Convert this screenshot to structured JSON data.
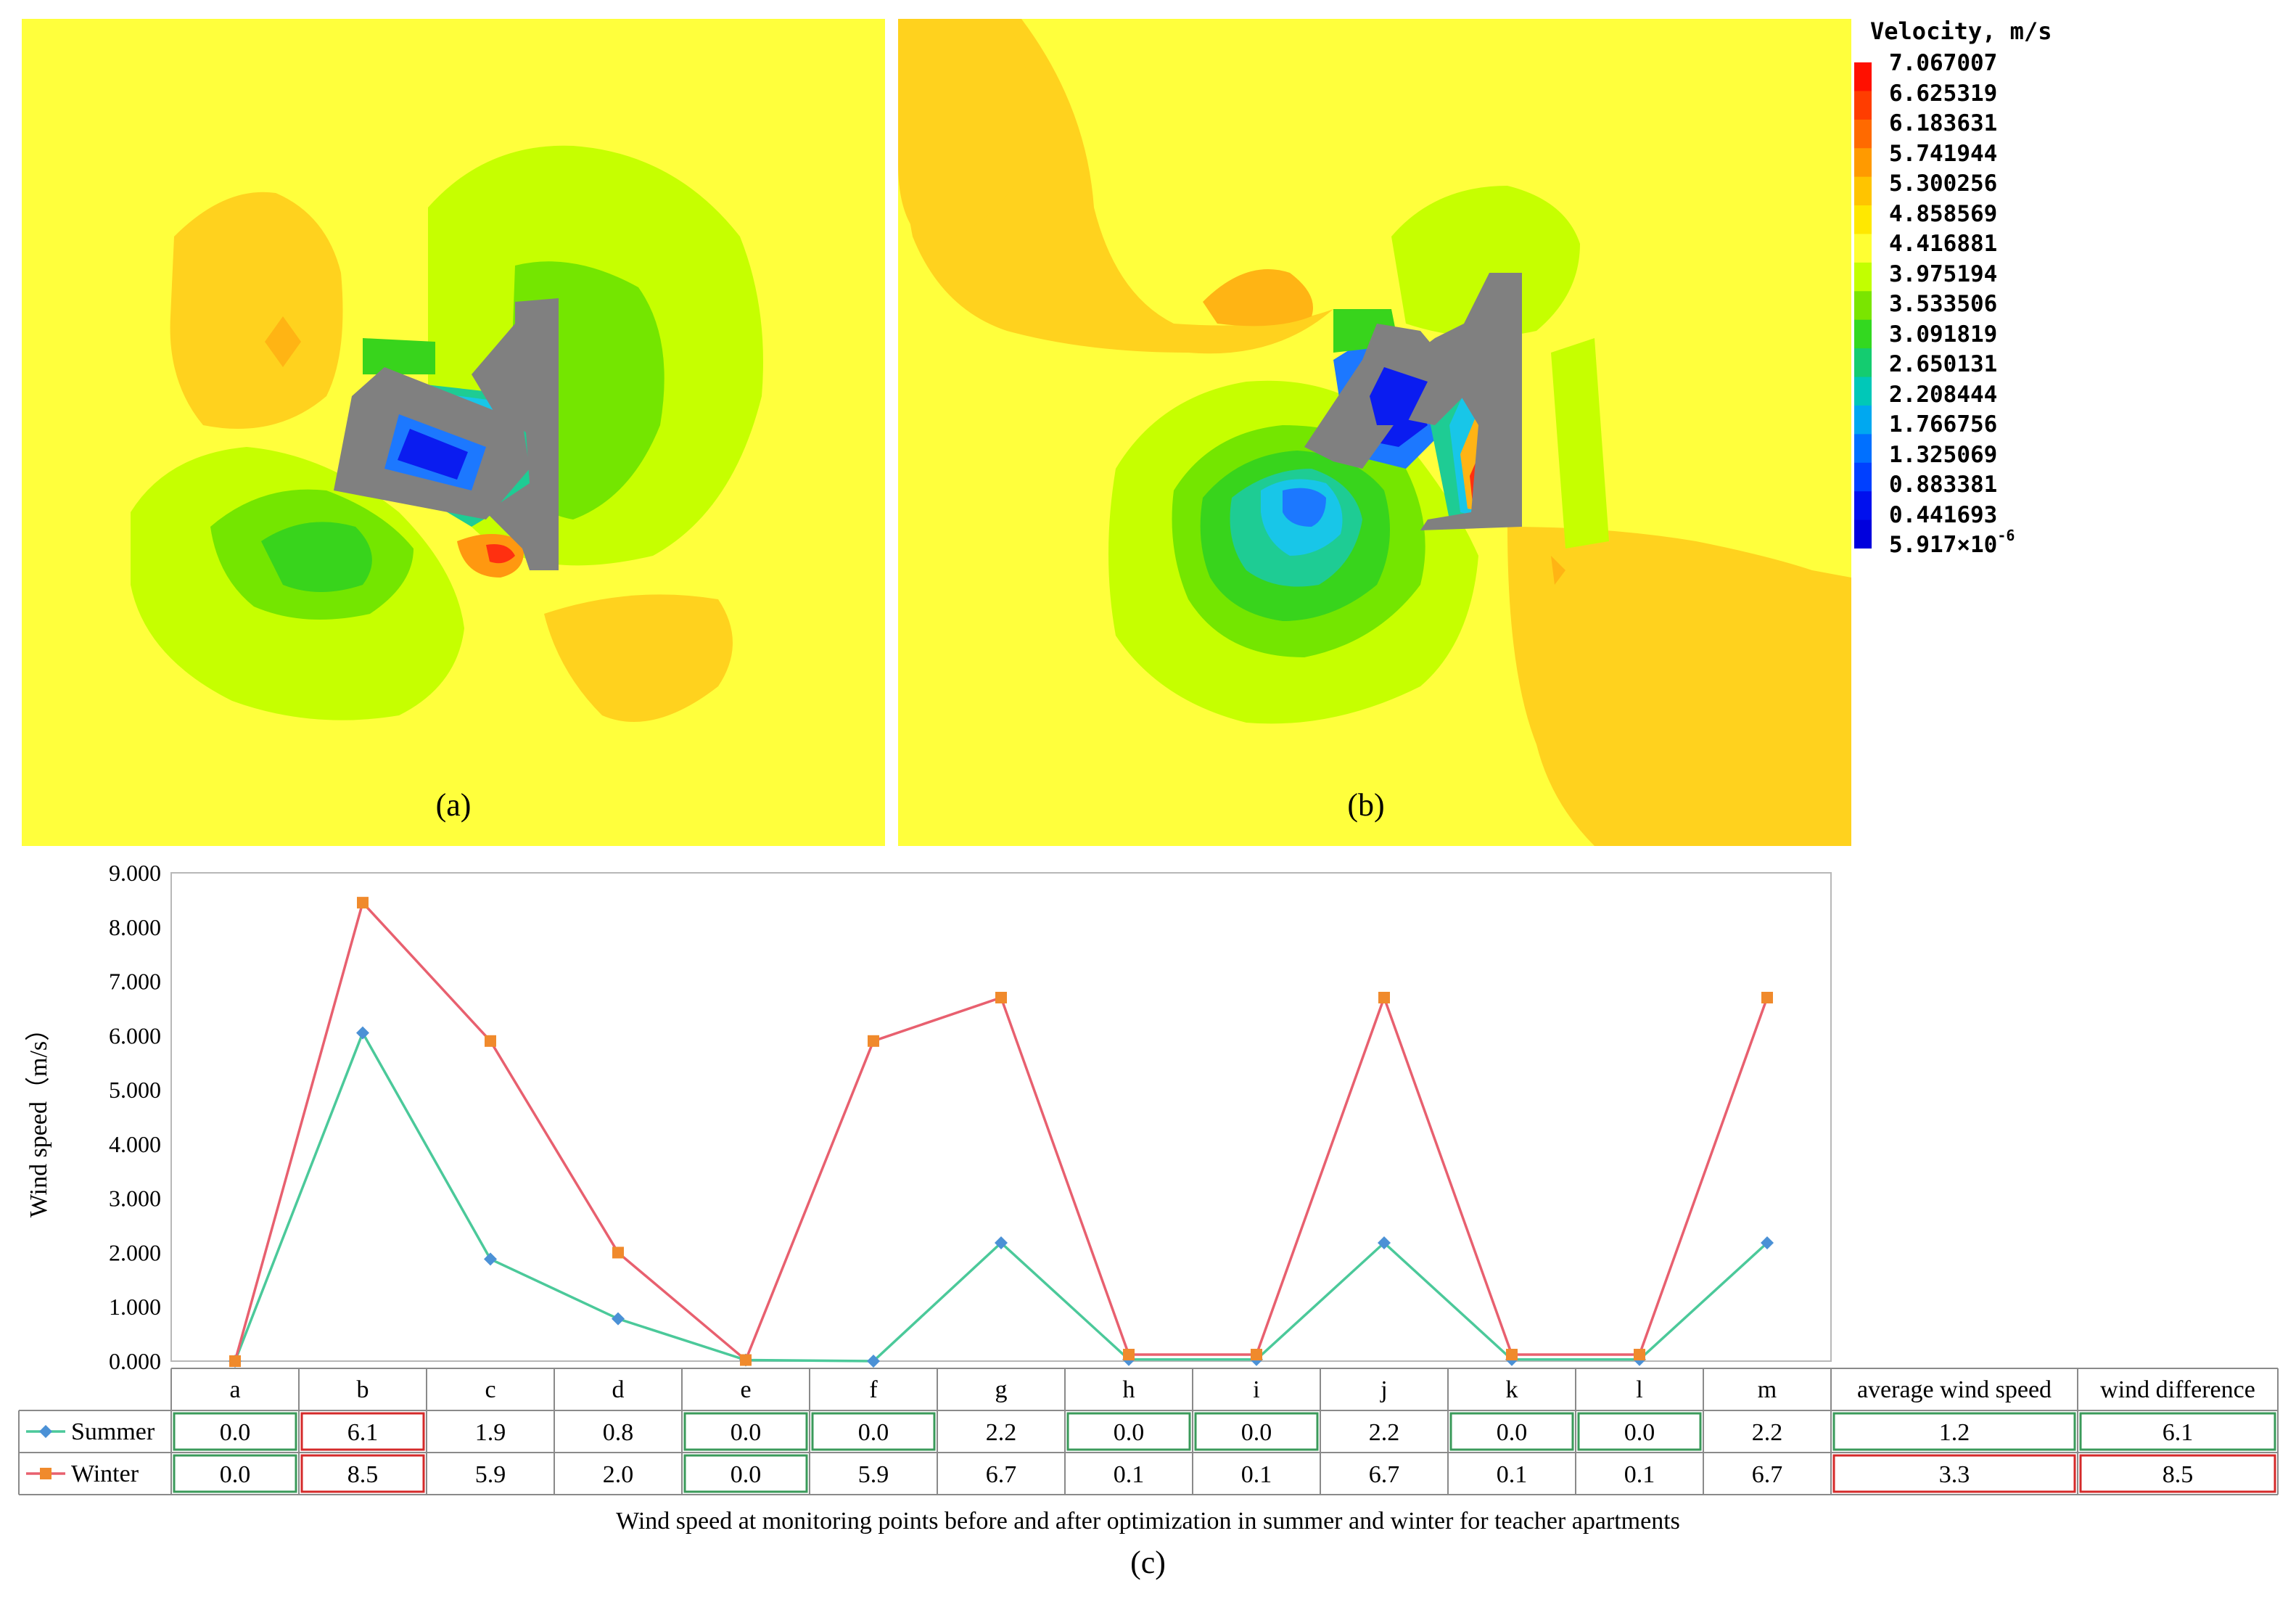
{
  "panels": {
    "a_label": "(a)",
    "b_label": "(b)",
    "c_label": "(c)"
  },
  "legend": {
    "title": "Velocity, m/s",
    "values": [
      "7.067007",
      "6.625319",
      "6.183631",
      "5.741944",
      "5.300256",
      "4.858569",
      "4.416881",
      "3.975194",
      "3.533506",
      "3.091819",
      "2.650131",
      "2.208444",
      "1.766756",
      "1.325069",
      "0.883381",
      "0.441693"
    ],
    "min_base": "5.917×10",
    "min_exp": "-6",
    "colors": [
      "#ff1000",
      "#ff3d00",
      "#ff6a00",
      "#ff9a00",
      "#ffc400",
      "#ffe800",
      "#ffff33",
      "#c2ff00",
      "#7ae500",
      "#33d820",
      "#14cc70",
      "#00c8b8",
      "#00a8f0",
      "#0070ff",
      "#0040ff",
      "#0010ee",
      "#0000dd"
    ],
    "field_colors": {
      "background": "#ffff3c",
      "light_green": "#c6ff00",
      "green": "#74e600",
      "bright_green": "#38d41c",
      "teal": "#1ecc94",
      "cyan": "#18c6e8",
      "blue": "#1c78ff",
      "deep_blue": "#0a1cf0",
      "orange_yellow": "#ffd21e",
      "orange": "#ffb414",
      "dark_orange": "#ff9810",
      "red": "#ff3010",
      "building": "#808080"
    }
  },
  "chart_data": {
    "type": "line",
    "title": "Wind speed at monitoring points before and after optimization in summer and winter for teacher apartments",
    "ylabel": "Wind speed（m/s）",
    "ylim": [
      0,
      9
    ],
    "yticks": [
      "0.000",
      "1.000",
      "2.000",
      "3.000",
      "4.000",
      "5.000",
      "6.000",
      "7.000",
      "8.000",
      "9.000"
    ],
    "categories": [
      "a",
      "b",
      "c",
      "d",
      "e",
      "f",
      "g",
      "h",
      "i",
      "j",
      "k",
      "l",
      "m"
    ],
    "series": [
      {
        "name": "Summer",
        "color": "#4bc99a",
        "marker_color": "#4b91d6",
        "marker": "diamond",
        "values": [
          0.0,
          6.05,
          1.88,
          0.78,
          0.02,
          0.0,
          2.18,
          0.03,
          0.03,
          2.18,
          0.03,
          0.03,
          2.18
        ]
      },
      {
        "name": "Winter",
        "color": "#e8606f",
        "marker_color": "#f08a2c",
        "marker": "square",
        "values": [
          0.0,
          8.45,
          5.9,
          2.0,
          0.02,
          5.9,
          6.7,
          0.12,
          0.12,
          6.7,
          0.12,
          0.12,
          6.7
        ]
      }
    ],
    "table": {
      "extra_headers": [
        "average wind speed",
        "wind difference"
      ],
      "rows": [
        {
          "name": "Summer",
          "cells": [
            "0.0",
            "6.1",
            "1.9",
            "0.8",
            "0.0",
            "0.0",
            "2.2",
            "0.0",
            "0.0",
            "2.2",
            "0.0",
            "0.0",
            "2.2",
            "1.2",
            "6.1"
          ],
          "highlight": [
            "green",
            "red",
            "none",
            "none",
            "green",
            "green",
            "none",
            "green",
            "green",
            "none",
            "green",
            "green",
            "none",
            "green",
            "green"
          ]
        },
        {
          "name": "Winter",
          "cells": [
            "0.0",
            "8.5",
            "5.9",
            "2.0",
            "0.0",
            "5.9",
            "6.7",
            "0.1",
            "0.1",
            "6.7",
            "0.1",
            "0.1",
            "6.7",
            "3.3",
            "8.5"
          ],
          "highlight": [
            "green",
            "red",
            "none",
            "none",
            "green",
            "none",
            "none",
            "none",
            "none",
            "none",
            "none",
            "none",
            "none",
            "red",
            "red"
          ]
        }
      ]
    },
    "highlight_colors": {
      "green": "#3a9a5a",
      "red": "#d42a2a"
    }
  }
}
